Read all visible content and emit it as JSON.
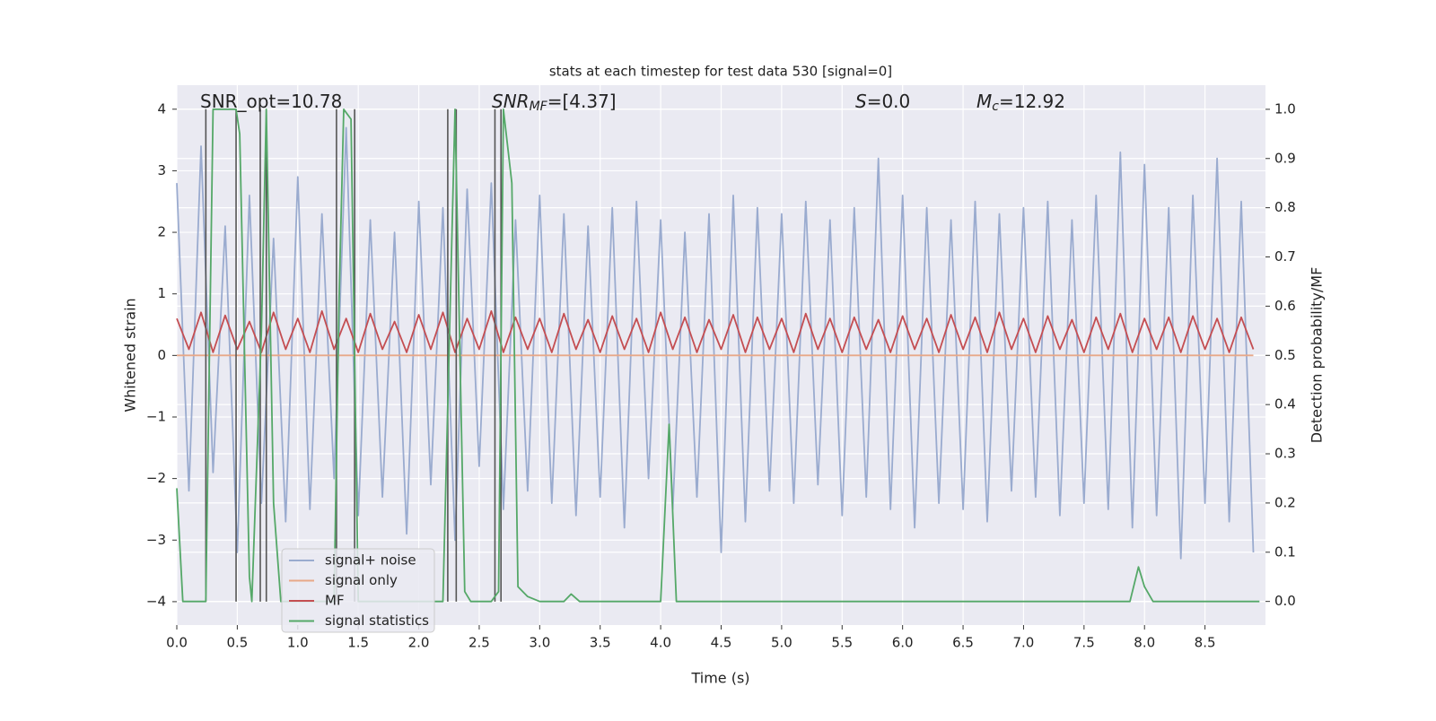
{
  "chart_data": {
    "type": "line",
    "title": "stats at each timestep for test data 530 [signal=0]",
    "xlabel": "Time (s)",
    "ylabel": "Whitened strain",
    "y2label": "Detection probability/MF",
    "annotations": [
      {
        "text": "SNR_opt=10.78"
      },
      {
        "main": "SNR",
        "sub": "MF",
        "rest": "=[4.37]"
      },
      {
        "main": "S",
        "rest": "=0.0"
      },
      {
        "main": "M",
        "sub": "c",
        "rest": "=12.92"
      }
    ],
    "xlim": [
      0,
      9.0
    ],
    "ylim": [
      -4.38,
      4.39
    ],
    "y2lim": [
      -0.048,
      1.049
    ],
    "xticks": [
      {
        "value": 0,
        "label": "0.0"
      },
      {
        "value": 0.5,
        "label": "0.5"
      },
      {
        "value": 1,
        "label": "1.0"
      },
      {
        "value": 1.5,
        "label": "1.5"
      },
      {
        "value": 2,
        "label": "2.0"
      },
      {
        "value": 2.5,
        "label": "2.5"
      },
      {
        "value": 3,
        "label": "3.0"
      },
      {
        "value": 3.5,
        "label": "3.5"
      },
      {
        "value": 4,
        "label": "4.0"
      },
      {
        "value": 4.5,
        "label": "4.5"
      },
      {
        "value": 5,
        "label": "5.0"
      },
      {
        "value": 5.5,
        "label": "5.5"
      },
      {
        "value": 6,
        "label": "6.0"
      },
      {
        "value": 6.5,
        "label": "6.5"
      },
      {
        "value": 7,
        "label": "7.0"
      },
      {
        "value": 7.5,
        "label": "7.5"
      },
      {
        "value": 8,
        "label": "8.0"
      },
      {
        "value": 8.5,
        "label": "8.5"
      }
    ],
    "yticks": [
      {
        "value": -4,
        "label": "−4"
      },
      {
        "value": -3,
        "label": "−3"
      },
      {
        "value": -2,
        "label": "−2"
      },
      {
        "value": -1,
        "label": "−1"
      },
      0,
      1,
      2,
      3,
      4
    ],
    "y2ticks": [
      {
        "value": 0,
        "label": "0.0"
      },
      {
        "value": 0.1,
        "label": "0.1"
      },
      {
        "value": 0.2,
        "label": "0.2"
      },
      {
        "value": 0.3,
        "label": "0.3"
      },
      {
        "value": 0.4,
        "label": "0.4"
      },
      {
        "value": 0.5,
        "label": "0.5"
      },
      {
        "value": 0.6,
        "label": "0.6"
      },
      {
        "value": 0.7,
        "label": "0.7"
      },
      {
        "value": 0.8,
        "label": "0.8"
      },
      {
        "value": 0.9,
        "label": "0.9"
      },
      {
        "value": 1,
        "label": "1.0"
      }
    ],
    "grid": true,
    "legend": "lower left",
    "vlines": {
      "color": "#555555",
      "ymin": -4,
      "ymax": 4,
      "x": [
        0.24,
        0.49,
        0.69,
        0.74,
        1.32,
        1.47,
        2.24,
        2.31,
        2.63,
        2.68
      ]
    },
    "x": [
      0.0,
      0.1,
      0.2,
      0.3,
      0.4,
      0.5,
      0.6,
      0.7,
      0.8,
      0.9,
      1.0,
      1.1,
      1.2,
      1.3,
      1.4,
      1.5,
      1.6,
      1.7,
      1.8,
      1.9,
      2.0,
      2.1,
      2.2,
      2.3,
      2.4,
      2.5,
      2.6,
      2.7,
      2.8,
      2.9,
      3.0,
      3.1,
      3.2,
      3.3,
      3.4,
      3.5,
      3.6,
      3.7,
      3.8,
      3.9,
      4.0,
      4.1,
      4.2,
      4.3,
      4.4,
      4.5,
      4.6,
      4.7,
      4.8,
      4.9,
      5.0,
      5.1,
      5.2,
      5.3,
      5.4,
      5.5,
      5.6,
      5.7,
      5.8,
      5.9,
      6.0,
      6.1,
      6.2,
      6.3,
      6.4,
      6.5,
      6.6,
      6.7,
      6.8,
      6.9,
      7.0,
      7.1,
      7.2,
      7.3,
      7.4,
      7.5,
      7.6,
      7.7,
      7.8,
      7.9,
      8.0,
      8.1,
      8.2,
      8.3,
      8.4,
      8.5,
      8.6,
      8.7,
      8.8,
      8.9
    ],
    "series": [
      {
        "name": "signal+ noise",
        "color": "#9aabcf",
        "values": [
          2.8,
          -2.2,
          3.4,
          -1.9,
          2.1,
          -3.2,
          2.6,
          -2.4,
          1.9,
          -2.7,
          2.9,
          -2.5,
          2.3,
          -2.0,
          3.7,
          -2.6,
          2.2,
          -2.3,
          2.0,
          -2.9,
          2.5,
          -2.1,
          2.4,
          -3.0,
          2.7,
          -1.8,
          2.8,
          -2.5,
          2.2,
          -2.2,
          2.6,
          -2.4,
          2.3,
          -2.6,
          2.1,
          -2.3,
          2.4,
          -2.8,
          2.5,
          -2.0,
          2.2,
          -2.5,
          2.0,
          -2.3,
          2.3,
          -3.2,
          2.6,
          -2.7,
          2.4,
          -2.2,
          2.3,
          -2.4,
          2.5,
          -2.1,
          2.2,
          -2.6,
          2.4,
          -2.3,
          3.2,
          -2.5,
          2.6,
          -2.8,
          2.4,
          -2.4,
          2.2,
          -2.5,
          2.5,
          -2.7,
          2.3,
          -2.2,
          2.4,
          -2.3,
          2.5,
          -2.6,
          2.2,
          -2.4,
          2.6,
          -2.5,
          3.3,
          -2.8,
          3.1,
          -2.6,
          2.4,
          -3.3,
          2.6,
          -2.4,
          3.2,
          -2.7,
          2.5,
          -3.2
        ]
      },
      {
        "name": "signal only",
        "color": "#e8a888",
        "x": [
          0.0,
          8.9
        ],
        "values": [
          0,
          0
        ]
      },
      {
        "name": "MF",
        "color": "#c44e52",
        "values": [
          0.6,
          0.1,
          0.7,
          0.05,
          0.65,
          0.1,
          0.55,
          0.05,
          0.7,
          0.1,
          0.6,
          0.05,
          0.72,
          0.1,
          0.6,
          0.05,
          0.68,
          0.1,
          0.55,
          0.05,
          0.66,
          0.1,
          0.7,
          0.05,
          0.6,
          0.1,
          0.72,
          0.05,
          0.62,
          0.1,
          0.6,
          0.05,
          0.68,
          0.1,
          0.58,
          0.05,
          0.64,
          0.1,
          0.6,
          0.05,
          0.7,
          0.1,
          0.62,
          0.05,
          0.58,
          0.1,
          0.66,
          0.05,
          0.62,
          0.1,
          0.6,
          0.05,
          0.68,
          0.1,
          0.6,
          0.05,
          0.62,
          0.1,
          0.58,
          0.05,
          0.64,
          0.1,
          0.6,
          0.05,
          0.66,
          0.1,
          0.62,
          0.05,
          0.7,
          0.1,
          0.6,
          0.05,
          0.64,
          0.1,
          0.58,
          0.05,
          0.62,
          0.1,
          0.68,
          0.05,
          0.6,
          0.1,
          0.62,
          0.05,
          0.64,
          0.1,
          0.6,
          0.05,
          0.62,
          0.1
        ]
      },
      {
        "name": "signal statistics",
        "color": "#55a868",
        "axis": "y2",
        "x": [
          0.0,
          0.05,
          0.24,
          0.3,
          0.49,
          0.52,
          0.6,
          0.62,
          0.7,
          0.74,
          0.8,
          0.86,
          1.3,
          1.34,
          1.38,
          1.44,
          1.5,
          2.2,
          2.3,
          2.38,
          2.43,
          2.6,
          2.66,
          2.7,
          2.77,
          2.82,
          2.9,
          3.0,
          3.2,
          3.26,
          3.33,
          4.0,
          4.07,
          4.13,
          5.4,
          7.88,
          7.95,
          8.0,
          8.07,
          8.95
        ],
        "values": [
          0.23,
          0.0,
          0.0,
          1.0,
          1.0,
          0.95,
          0.05,
          0.0,
          0.55,
          1.0,
          0.2,
          0.0,
          0.0,
          0.6,
          1.0,
          0.98,
          0.0,
          0.0,
          1.0,
          0.02,
          0.0,
          0.0,
          0.02,
          1.0,
          0.85,
          0.03,
          0.01,
          0.0,
          0.0,
          0.015,
          0.0,
          0.0,
          0.36,
          0.0,
          0.0,
          0.0,
          0.07,
          0.03,
          0.0,
          0.0
        ]
      }
    ]
  }
}
